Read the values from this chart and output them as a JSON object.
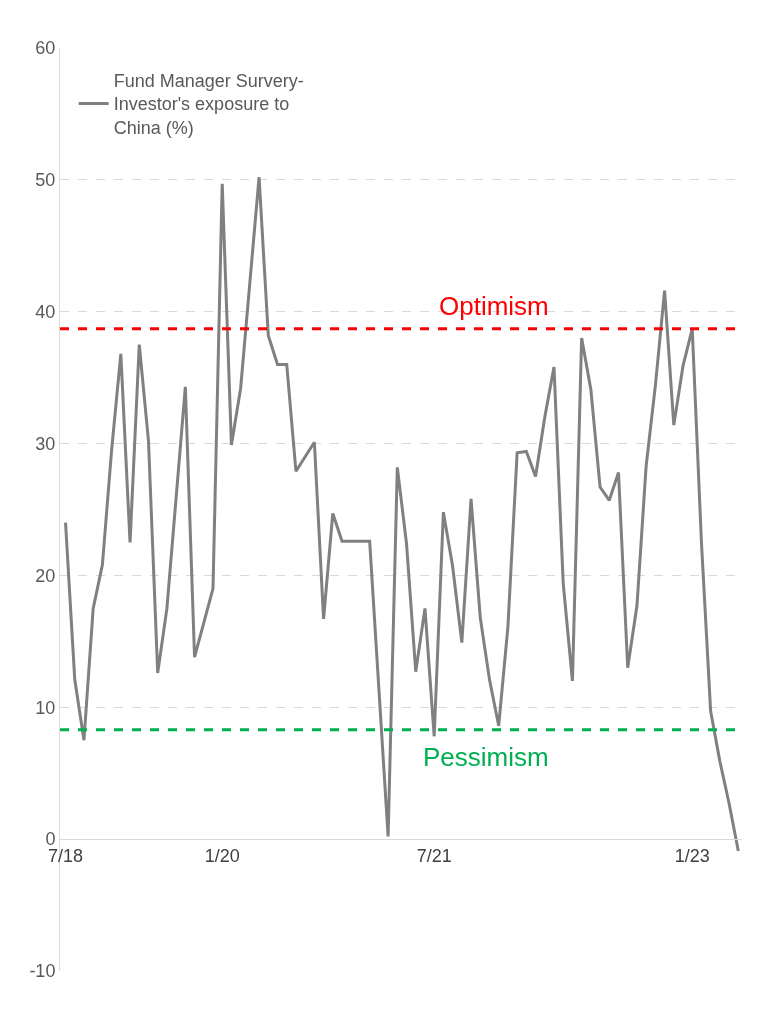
{
  "chart_data": {
    "type": "line",
    "categories": [
      "7/18",
      null,
      null,
      null,
      null,
      null,
      null,
      null,
      null,
      null,
      null,
      null,
      null,
      null,
      null,
      null,
      null,
      "1/20",
      null,
      null,
      null,
      null,
      null,
      null,
      null,
      null,
      null,
      null,
      null,
      null,
      null,
      null,
      null,
      null,
      null,
      null,
      null,
      null,
      null,
      null,
      "7/21",
      null,
      null,
      null,
      null,
      null,
      null,
      null,
      null,
      null,
      null,
      null,
      null,
      null,
      null,
      null,
      null,
      null,
      null,
      null,
      null,
      null,
      null,
      null,
      null,
      null,
      null,
      null,
      "1/23",
      null,
      null,
      null,
      null,
      null
    ],
    "series": [
      {
        "name": "Fund Manager Survery-Investor's exposure to China (%)",
        "color": "#808080",
        "values": [
          24.0,
          12.1,
          7.5,
          17.5,
          20.8,
          29.5,
          36.8,
          22.5,
          37.5,
          30.2,
          12.6,
          17.5,
          25.9,
          34.3,
          13.8,
          16.4,
          19.0,
          49.7,
          29.9,
          34.2,
          42.2,
          50.2,
          38.2,
          36.0,
          36.0,
          27.9,
          29.0,
          30.1,
          16.7,
          24.7,
          22.6,
          22.6,
          22.6,
          22.6,
          11.4,
          0.2,
          28.2,
          22.4,
          12.7,
          17.5,
          7.8,
          24.8,
          20.7,
          14.9,
          25.8,
          16.8,
          12.1,
          8.6,
          16.1,
          29.3,
          29.4,
          27.5,
          32.0,
          35.8,
          19.4,
          12.0,
          38.0,
          34.1,
          26.7,
          25.7,
          27.8,
          13.0,
          17.7,
          28.3,
          34.4,
          41.6,
          31.4,
          35.9,
          38.7,
          22.5,
          9.7,
          5.9,
          2.7,
          -0.9
        ]
      }
    ],
    "ylim": [
      -10,
      60
    ],
    "yticks": [
      -10,
      0,
      10,
      20,
      30,
      40,
      50,
      60
    ],
    "grid": "y",
    "legend": "top left",
    "marker": "none",
    "line_style": "solid",
    "ref_lines": [
      {
        "axis": "y",
        "value": 38.7,
        "label": "Optimism",
        "color": "#ff0000",
        "line_style": "dashed"
      },
      {
        "axis": "y",
        "value": 8.3,
        "label": "Pessimism",
        "color": "#00b050",
        "line_style": "dashed"
      }
    ]
  }
}
